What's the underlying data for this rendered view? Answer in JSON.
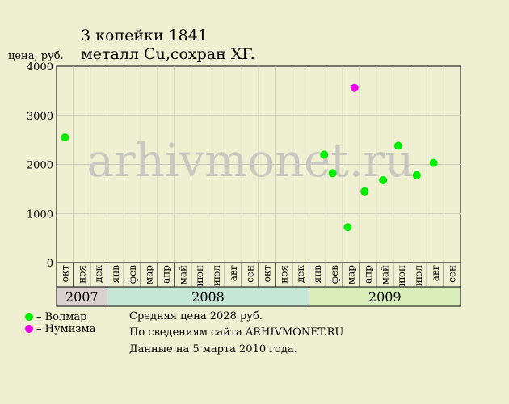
{
  "title_line1": "3 копейки 1841",
  "title_line2": "металл Cu,сохран XF.",
  "watermark": "arhivmonet.ru",
  "chart_data": {
    "type": "scatter",
    "ylabel": "цена, руб.",
    "ylim": [
      0,
      4000
    ],
    "yticks": [
      0,
      1000,
      2000,
      3000,
      4000
    ],
    "months": [
      "окт",
      "ноя",
      "дек",
      "янв",
      "фев",
      "мар",
      "апр",
      "май",
      "июн",
      "июл",
      "авг",
      "сен",
      "окт",
      "ноя",
      "дек",
      "янв",
      "фев",
      "мар",
      "апр",
      "май",
      "июн",
      "июл",
      "авг",
      "сен"
    ],
    "years": [
      {
        "label": "2007",
        "start": 0,
        "count": 3,
        "color": "#d9d0d0"
      },
      {
        "label": "2008",
        "start": 3,
        "count": 12,
        "color": "#c6e6d6"
      },
      {
        "label": "2009",
        "start": 15,
        "count": 9,
        "color": "#d9edba"
      }
    ],
    "grid": true,
    "series": [
      {
        "name": "Волмар",
        "color": "#00ee00",
        "points": [
          {
            "x": 0.5,
            "y": 2550
          },
          {
            "x": 15.9,
            "y": 2200
          },
          {
            "x": 16.4,
            "y": 1820
          },
          {
            "x": 17.3,
            "y": 720
          },
          {
            "x": 18.3,
            "y": 1450
          },
          {
            "x": 19.4,
            "y": 1680
          },
          {
            "x": 20.3,
            "y": 2380
          },
          {
            "x": 21.4,
            "y": 1780
          },
          {
            "x": 22.4,
            "y": 2030
          }
        ]
      },
      {
        "name": "Нумизма",
        "color": "#ee00ee",
        "points": [
          {
            "x": 17.7,
            "y": 3560
          }
        ]
      }
    ]
  },
  "legend": [
    {
      "label": "– Волмар",
      "color": "#00ee00"
    },
    {
      "label": "– Нумизма",
      "color": "#ee00ee"
    }
  ],
  "notes": {
    "avg_price": "Средняя цена 2028 руб.",
    "source": "По  сведениям сайта ARHIVMONET.RU",
    "date": "Данные на 5 марта 2010 года."
  }
}
